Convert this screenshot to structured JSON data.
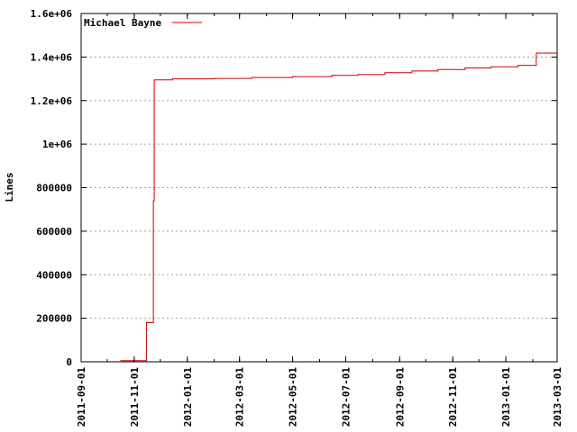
{
  "chart_data": {
    "type": "line",
    "ylabel": "Lines",
    "xlabel": "",
    "title": "",
    "x_axis_type": "date",
    "xlim": [
      "2011-09-01",
      "2013-03-01"
    ],
    "ylim": [
      0,
      1600000
    ],
    "grid": true,
    "legend_position": "top-left",
    "x_tick_labels": [
      "2011-09-01",
      "2011-11-01",
      "2012-01-01",
      "2012-03-01",
      "2012-05-01",
      "2012-07-01",
      "2012-09-01",
      "2012-11-01",
      "2013-01-01",
      "2013-03-01"
    ],
    "y_ticks": [
      0,
      200000,
      400000,
      600000,
      800000,
      1000000,
      1200000,
      1400000,
      1600000
    ],
    "y_tick_labels": [
      "0",
      "200000",
      "400000",
      "600000",
      "800000",
      "1e+06",
      "1.2e+06",
      "1.4e+06",
      "1.6e+06"
    ],
    "series": [
      {
        "name": "Michael Bayne",
        "color": "#cc0000",
        "step": true,
        "x": [
          "2011-10-16",
          "2011-11-15",
          "2011-11-23",
          "2011-11-24",
          "2011-12-15",
          "2012-02-01",
          "2012-03-15",
          "2012-05-01",
          "2012-06-15",
          "2012-07-15",
          "2012-08-15",
          "2012-09-15",
          "2012-10-15",
          "2012-11-15",
          "2012-12-15",
          "2013-01-15",
          "2013-02-05",
          "2013-03-01"
        ],
        "y": [
          5000,
          180000,
          740000,
          1295000,
          1300000,
          1302000,
          1306000,
          1310000,
          1316000,
          1320000,
          1328000,
          1336000,
          1343000,
          1350000,
          1355000,
          1362000,
          1418000,
          1422000
        ]
      }
    ]
  }
}
